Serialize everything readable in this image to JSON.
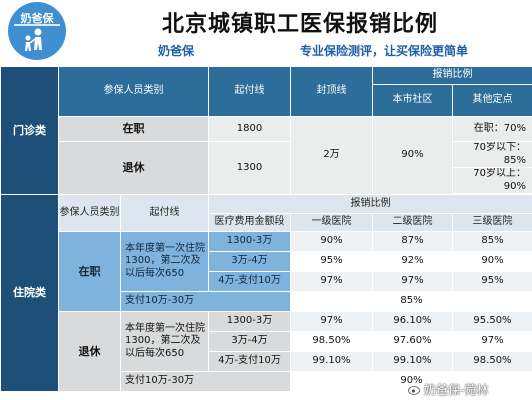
{
  "header": {
    "logo_text": "奶爸保",
    "title": "北京城镇职工医保报销比例",
    "brand": "奶爸保",
    "slogan": "专业保险测评，让买保险更简单"
  },
  "outpatient": {
    "section_label": "门诊类",
    "col_category": "参保人员类别",
    "col_threshold": "起付线",
    "col_cap": "封顶线",
    "col_ratio": "报销比例",
    "col_community": "本市社区",
    "col_other": "其他定点",
    "rows": [
      {
        "category": "在职",
        "threshold": "1800",
        "other": [
          "在职：70%"
        ]
      },
      {
        "category": "退休",
        "threshold": "1300",
        "other": [
          "70岁以下：85%",
          "70岁以上：90%"
        ]
      }
    ],
    "cap": "2万",
    "community": "90%"
  },
  "inpatient": {
    "section_label": "住院类",
    "col_category": "参保人员类别",
    "col_threshold": "起付线",
    "col_ratio": "报销比例",
    "col_range": "医疗费用金额段",
    "col_l1": "一级医院",
    "col_l2": "二级医院",
    "col_l3": "三级医院",
    "groups": [
      {
        "category": "在职",
        "threshold": "本年度第一次住院1300，第二次及以后每次650",
        "rows": [
          {
            "range": "1300-3万",
            "l1": "90%",
            "l2": "87%",
            "l3": "85%"
          },
          {
            "range": "3万-4万",
            "l1": "95%",
            "l2": "92%",
            "l3": "90%"
          },
          {
            "range": "4万-支付10万",
            "l1": "97%",
            "l2": "97%",
            "l3": "95%"
          }
        ],
        "extra_range": "支付10万-30万",
        "extra_value": "85%"
      },
      {
        "category": "退休",
        "threshold": "本年度第一次住院1300，第二次及以后每次650",
        "rows": [
          {
            "range": "1300-3万",
            "l1": "97%",
            "l2": "96.10%",
            "l3": "95.50%"
          },
          {
            "range": "3万-4万",
            "l1": "98.50%",
            "l2": "97.60%",
            "l3": "97%"
          },
          {
            "range": "4万-支付10万",
            "l1": "99.10%",
            "l2": "99.10%",
            "l3": "98.50%"
          }
        ],
        "extra_range": "支付10万-30万",
        "extra_value": "90%"
      }
    ]
  },
  "watermark": "奶爸保-菀林"
}
